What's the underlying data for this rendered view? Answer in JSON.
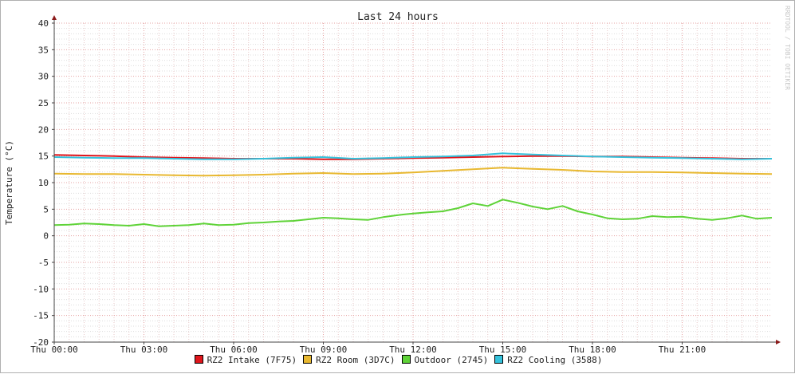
{
  "chart_data": {
    "type": "line",
    "title": "Last 24 hours",
    "ylabel": "Temperature (°C)",
    "xlabel": "",
    "watermark": "RRDTOOL / TOBI OETIKER",
    "ylim": [
      -20,
      40
    ],
    "xlim": [
      0,
      24
    ],
    "y_ticks": [
      40,
      35,
      30,
      25,
      20,
      15,
      10,
      5,
      0,
      -5,
      -10,
      -15,
      -20
    ],
    "x_ticks": [
      {
        "hour": 0,
        "label": "Thu 00:00"
      },
      {
        "hour": 3,
        "label": "Thu 03:00"
      },
      {
        "hour": 6,
        "label": "Thu 06:00"
      },
      {
        "hour": 9,
        "label": "Thu 09:00"
      },
      {
        "hour": 12,
        "label": "Thu 12:00"
      },
      {
        "hour": 15,
        "label": "Thu 15:00"
      },
      {
        "hour": 18,
        "label": "Thu 18:00"
      },
      {
        "hour": 21,
        "label": "Thu 21:00"
      }
    ],
    "grid": true,
    "legend_position": "bottom",
    "series": [
      {
        "name": "RZ2 Intake (7F75)",
        "color": "#e0161c",
        "x": [
          0,
          1,
          2,
          3,
          4,
          5,
          6,
          7,
          8,
          9,
          10,
          11,
          12,
          13,
          14,
          15,
          16,
          17,
          18,
          19,
          20,
          21,
          22,
          23,
          24
        ],
        "y": [
          15.2,
          15.1,
          15.0,
          14.8,
          14.7,
          14.6,
          14.5,
          14.5,
          14.5,
          14.4,
          14.4,
          14.5,
          14.6,
          14.7,
          14.8,
          14.9,
          15.0,
          15.0,
          14.9,
          14.9,
          14.8,
          14.7,
          14.6,
          14.5,
          14.5
        ]
      },
      {
        "name": "RZ2 Room (3D7C)",
        "color": "#e8b830",
        "x": [
          0,
          1,
          2,
          3,
          4,
          5,
          6,
          7,
          8,
          9,
          10,
          11,
          12,
          13,
          14,
          15,
          16,
          17,
          18,
          19,
          20,
          21,
          22,
          23,
          24
        ],
        "y": [
          11.7,
          11.6,
          11.6,
          11.5,
          11.4,
          11.3,
          11.4,
          11.5,
          11.7,
          11.8,
          11.6,
          11.7,
          11.9,
          12.2,
          12.5,
          12.8,
          12.6,
          12.4,
          12.1,
          12.0,
          12.0,
          11.9,
          11.8,
          11.7,
          11.6
        ]
      },
      {
        "name": "Outdoor (2745)",
        "color": "#5fd338",
        "x": [
          0,
          0.5,
          1,
          1.5,
          2,
          2.5,
          3,
          3.5,
          4,
          4.5,
          5,
          5.5,
          6,
          6.5,
          7,
          7.5,
          8,
          8.5,
          9,
          9.5,
          10,
          10.5,
          11,
          11.5,
          12,
          12.5,
          13,
          13.5,
          14,
          14.5,
          15,
          15.5,
          16,
          16.5,
          17,
          17.5,
          18,
          18.5,
          19,
          19.5,
          20,
          20.5,
          21,
          21.5,
          22,
          22.5,
          23,
          23.5,
          24
        ],
        "y": [
          2.0,
          2.1,
          2.3,
          2.2,
          2.0,
          1.9,
          2.2,
          1.8,
          1.9,
          2.0,
          2.3,
          2.0,
          2.1,
          2.4,
          2.5,
          2.7,
          2.8,
          3.1,
          3.4,
          3.3,
          3.1,
          3.0,
          3.5,
          3.9,
          4.2,
          4.4,
          4.6,
          5.2,
          6.1,
          5.6,
          6.8,
          6.2,
          5.5,
          5.0,
          5.6,
          4.6,
          4.0,
          3.3,
          3.1,
          3.2,
          3.7,
          3.5,
          3.6,
          3.2,
          3.0,
          3.3,
          3.8,
          3.2,
          3.4
        ]
      },
      {
        "name": "RZ2 Cooling (3588)",
        "color": "#35c2dc",
        "x": [
          0,
          1,
          2,
          3,
          4,
          5,
          6,
          7,
          8,
          9,
          10,
          11,
          12,
          13,
          14,
          15,
          16,
          17,
          18,
          19,
          20,
          21,
          22,
          23,
          24
        ],
        "y": [
          14.8,
          14.7,
          14.6,
          14.6,
          14.5,
          14.4,
          14.4,
          14.5,
          14.7,
          14.8,
          14.5,
          14.6,
          14.8,
          14.9,
          15.1,
          15.5,
          15.3,
          15.1,
          14.9,
          14.8,
          14.7,
          14.6,
          14.5,
          14.4,
          14.5
        ]
      }
    ]
  }
}
